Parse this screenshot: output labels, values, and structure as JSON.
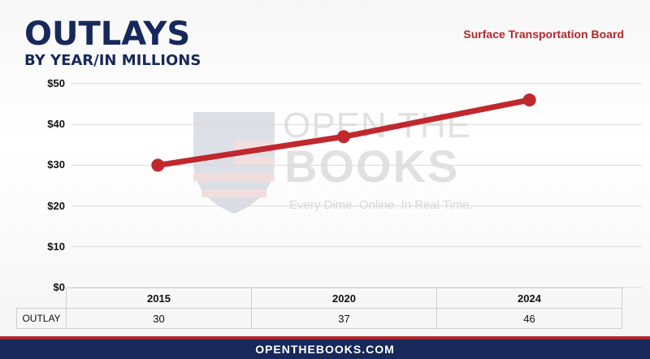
{
  "header": {
    "title": "OUTLAYS",
    "subtitle": "BY YEAR/IN MILLIONS",
    "agency": "Surface Transportation Board"
  },
  "watermark": {
    "line1": "OPEN THE",
    "line2": "BOOKS",
    "tagline": "Every Dime. Online. In Real Time."
  },
  "table": {
    "row_label": "OUTLAY",
    "years": [
      "2015",
      "2020",
      "2024"
    ],
    "values": [
      "30",
      "37",
      "46"
    ]
  },
  "footer": {
    "url": "OPENTHEBOOKS.COM"
  },
  "colors": {
    "navy": "#17295b",
    "red": "#b3262b",
    "line": "#c0282d"
  },
  "chart_data": {
    "type": "line",
    "categories": [
      "2015",
      "2020",
      "2024"
    ],
    "series": [
      {
        "values": [
          30,
          37,
          46
        ]
      }
    ],
    "ylim": [
      0,
      50
    ],
    "yticks": [
      "$0",
      "$10",
      "$20",
      "$30",
      "$40",
      "$50"
    ],
    "grid": true
  }
}
